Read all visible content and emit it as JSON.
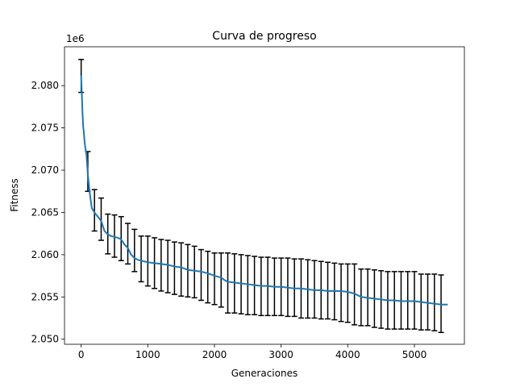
{
  "chart_data": {
    "type": "line",
    "title": "Curva de progreso",
    "xlabel": "Generaciones",
    "ylabel": "Fitness",
    "offset_label": "1e6",
    "xlim": [
      -250,
      5750
    ],
    "ylim": [
      2.0494,
      2.0846
    ],
    "xticks": [
      0,
      1000,
      2000,
      3000,
      4000,
      5000
    ],
    "xtick_labels": [
      "0",
      "1000",
      "2000",
      "3000",
      "4000",
      "5000"
    ],
    "yticks": [
      2.05,
      2.055,
      2.06,
      2.065,
      2.07,
      2.075,
      2.08
    ],
    "ytick_labels": [
      "2.050",
      "2.055",
      "2.060",
      "2.065",
      "2.070",
      "2.075",
      "2.080"
    ],
    "grid": false,
    "line_color": "#1f77b4",
    "errorbar_color": "#000000",
    "series": [
      {
        "x": [
          0,
          10,
          20,
          30,
          40,
          50,
          60,
          80,
          100,
          130,
          160,
          200,
          250,
          300,
          350,
          400,
          450,
          500,
          550,
          600,
          650,
          700,
          750,
          800,
          850,
          900,
          1000,
          1100,
          1200,
          1300,
          1400,
          1500,
          1600,
          1700,
          1800,
          1900,
          2000,
          2100,
          2150,
          2200,
          2300,
          2400,
          2500,
          2600,
          2700,
          2800,
          2900,
          3000,
          3100,
          3200,
          3300,
          3400,
          3500,
          3600,
          3700,
          3800,
          3900,
          4000,
          4100,
          4150,
          4200,
          4300,
          4400,
          4500,
          4600,
          4700,
          4800,
          4900,
          5000,
          5100,
          5200,
          5300,
          5400,
          5500
        ],
        "y": [
          2.0812,
          2.079,
          2.0768,
          2.0752,
          2.0745,
          2.0735,
          2.0728,
          2.0718,
          2.0695,
          2.0672,
          2.0655,
          2.065,
          2.0645,
          2.064,
          2.0628,
          2.0624,
          2.0622,
          2.0621,
          2.062,
          2.0618,
          2.0612,
          2.0608,
          2.06,
          2.0596,
          2.0594,
          2.0593,
          2.0591,
          2.059,
          2.0589,
          2.0588,
          2.0586,
          2.0585,
          2.0582,
          2.0581,
          2.058,
          2.0578,
          2.0575,
          2.0573,
          2.057,
          2.0568,
          2.0567,
          2.0566,
          2.0565,
          2.0564,
          2.0563,
          2.0563,
          2.0562,
          2.0562,
          2.0561,
          2.056,
          2.056,
          2.0559,
          2.0558,
          2.0558,
          2.0557,
          2.0557,
          2.0557,
          2.0556,
          2.0554,
          2.0552,
          2.055,
          2.0549,
          2.0548,
          2.0547,
          2.0546,
          2.0546,
          2.0545,
          2.0545,
          2.0545,
          2.0544,
          2.0543,
          2.0542,
          2.0541,
          2.0541
        ]
      }
    ],
    "errorbars": {
      "x": [
        0,
        100,
        200,
        300,
        400,
        500,
        600,
        700,
        800,
        900,
        1000,
        1100,
        1200,
        1300,
        1400,
        1500,
        1600,
        1700,
        1800,
        1900,
        2000,
        2100,
        2200,
        2300,
        2400,
        2500,
        2600,
        2700,
        2800,
        2900,
        3000,
        3100,
        3200,
        3300,
        3400,
        3500,
        3600,
        3700,
        3800,
        3900,
        4000,
        4100,
        4200,
        4300,
        4400,
        4500,
        4600,
        4700,
        4800,
        4900,
        5000,
        5100,
        5200,
        5300,
        5400
      ],
      "lower": [
        2.0792,
        2.0675,
        2.0628,
        2.0617,
        2.0601,
        2.0597,
        2.0593,
        2.0589,
        2.058,
        2.0568,
        2.0563,
        2.056,
        2.0557,
        2.0555,
        2.0553,
        2.0551,
        2.055,
        2.0549,
        2.0546,
        2.0543,
        2.0541,
        2.0538,
        2.0531,
        2.0531,
        2.053,
        2.0529,
        2.0529,
        2.0528,
        2.0528,
        2.0528,
        2.0528,
        2.0527,
        2.0527,
        2.0525,
        2.0525,
        2.0525,
        2.0524,
        2.0524,
        2.0523,
        2.0521,
        2.052,
        2.0517,
        2.0516,
        2.0516,
        2.0514,
        2.0513,
        2.0512,
        2.0512,
        2.0512,
        2.0512,
        2.0512,
        2.0511,
        2.0511,
        2.051,
        2.0508
      ],
      "upper": [
        2.0831,
        2.0722,
        2.0677,
        2.0667,
        2.0648,
        2.0647,
        2.0645,
        2.0637,
        2.063,
        2.0622,
        2.0622,
        2.062,
        2.0618,
        2.0617,
        2.0615,
        2.0614,
        2.0612,
        2.061,
        2.0606,
        2.0604,
        2.0602,
        2.0602,
        2.0602,
        2.0601,
        2.06,
        2.0599,
        2.0598,
        2.0597,
        2.0597,
        2.0596,
        2.0596,
        2.0596,
        2.0595,
        2.0595,
        2.0594,
        2.0593,
        2.0592,
        2.0591,
        2.059,
        2.0589,
        2.0589,
        2.0589,
        2.0583,
        2.0583,
        2.0582,
        2.0581,
        2.058,
        2.058,
        2.058,
        2.058,
        2.058,
        2.0577,
        2.0577,
        2.0577,
        2.0576
      ]
    }
  }
}
